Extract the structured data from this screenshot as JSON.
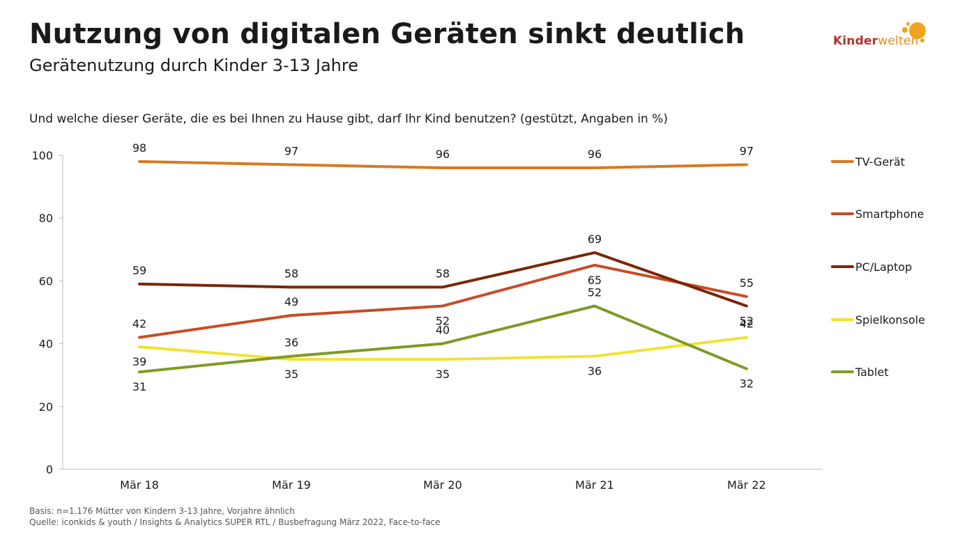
{
  "header": {
    "title": "Nutzung von digitalen Geräten sinkt deutlich",
    "subtitle": "Gerätenutzung durch Kinder 3-13 Jahre"
  },
  "question": "Und welche dieser Geräte, die es bei Ihnen zu Hause gibt, darf Ihr Kind benutzen? (gestützt, Angaben in %)",
  "logo": {
    "part1": "Kinder",
    "part2": "welten",
    "accent_color": "#f2a21e"
  },
  "footer": {
    "basis": "Basis: n=1.176 Mütter von Kindern 3-13 Jahre, Vorjahre ähnlich",
    "source": "Quelle: iconkids & youth / Insights & Analytics SUPER RTL / Busbefragung März 2022, Face-to-face"
  },
  "chart_data": {
    "type": "line",
    "title": "Nutzung von digitalen Geräten sinkt deutlich",
    "xlabel": "",
    "ylabel": "",
    "categories": [
      "Mär 18",
      "Mär 19",
      "Mär 20",
      "Mär 21",
      "Mär 22"
    ],
    "ylim": [
      0,
      100
    ],
    "yticks": [
      0,
      20,
      40,
      60,
      80,
      100
    ],
    "grid": false,
    "legend_position": "right",
    "series": [
      {
        "name": "TV-Gerät",
        "color": "#d9791e",
        "values": [
          98,
          97,
          96,
          96,
          97
        ],
        "label_side": [
          "above",
          "above",
          "above",
          "above",
          "above"
        ]
      },
      {
        "name": "Smartphone",
        "color": "#c94b26",
        "values": [
          42,
          49,
          52,
          65,
          55
        ],
        "label_side": [
          "above",
          "above",
          "below",
          "below",
          "above"
        ]
      },
      {
        "name": "PC/Laptop",
        "color": "#7a2608",
        "values": [
          59,
          58,
          58,
          69,
          52
        ],
        "label_side": [
          "above",
          "above",
          "above",
          "above",
          "below"
        ]
      },
      {
        "name": "Spielkonsole",
        "color": "#f2e230",
        "values": [
          39,
          35,
          35,
          36,
          42
        ],
        "label_side": [
          "below",
          "below",
          "below",
          "below",
          "above"
        ]
      },
      {
        "name": "Tablet",
        "color": "#7f9a24",
        "values": [
          31,
          36,
          40,
          52,
          32
        ],
        "label_side": [
          "below",
          "above",
          "above",
          "above",
          "below"
        ]
      }
    ]
  }
}
